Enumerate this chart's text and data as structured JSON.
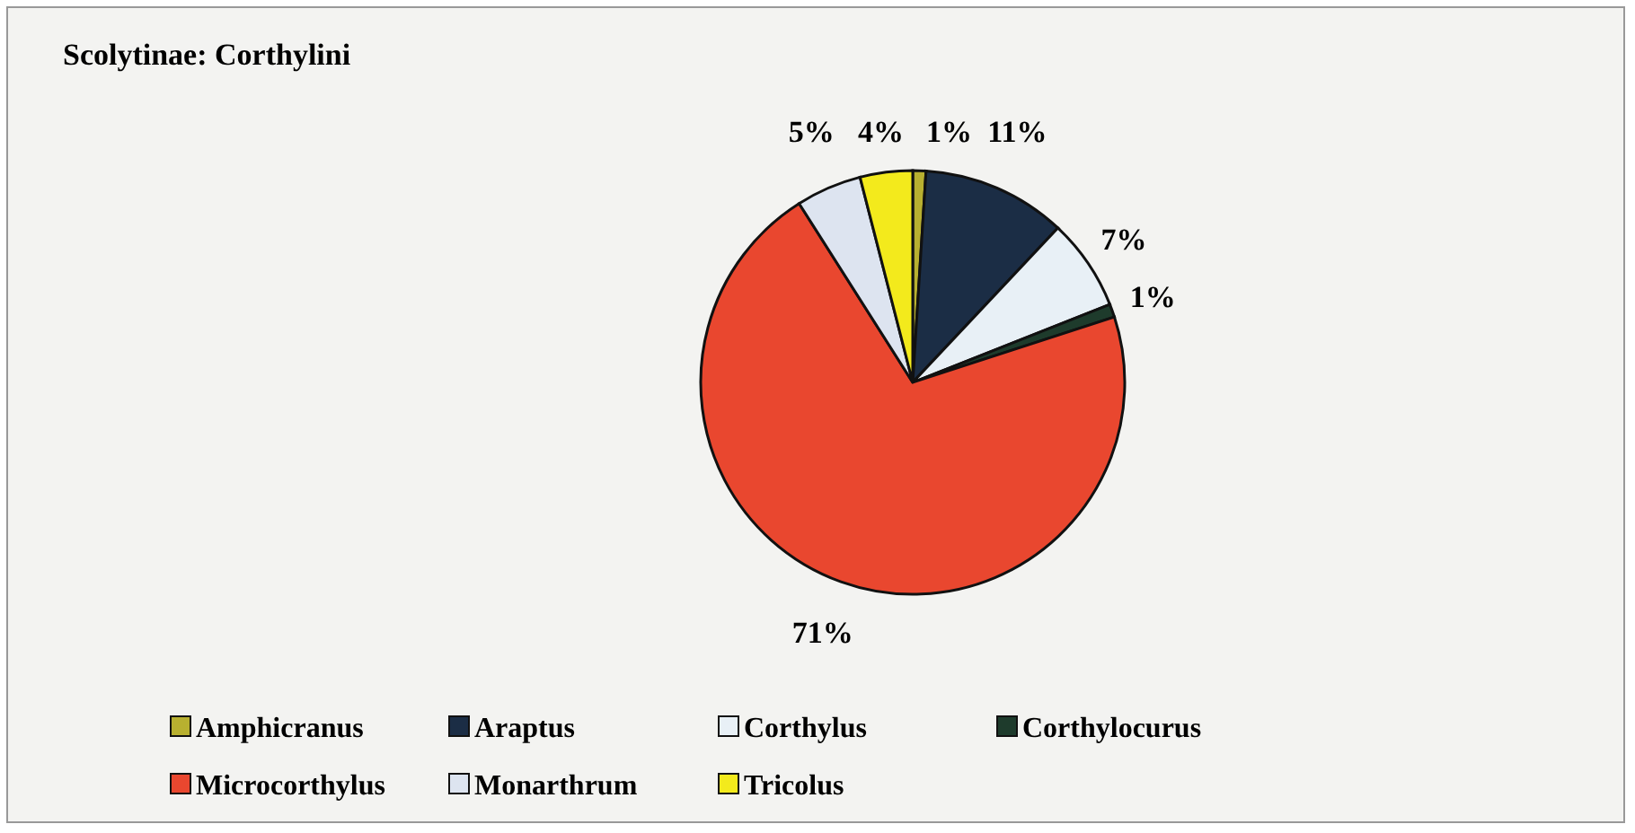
{
  "chart_data": {
    "type": "pie",
    "title": "Scolytinae: Corthylini",
    "categories": [
      "Amphicranus",
      "Araptus",
      "Corthylus",
      "Corthylocurus",
      "Microcorthylus",
      "Monarthrum",
      "Tricolus"
    ],
    "values": [
      1,
      11,
      7,
      1,
      71,
      5,
      4
    ],
    "colors": [
      "#b8b030",
      "#1b2d45",
      "#e8f0f6",
      "#1e3b2c",
      "#e9472f",
      "#dde4f0",
      "#f3ea1c"
    ],
    "value_labels": [
      "1%",
      "11%",
      "7%",
      "1%",
      "71%",
      "5%",
      "4%"
    ],
    "legend": "bottom"
  }
}
